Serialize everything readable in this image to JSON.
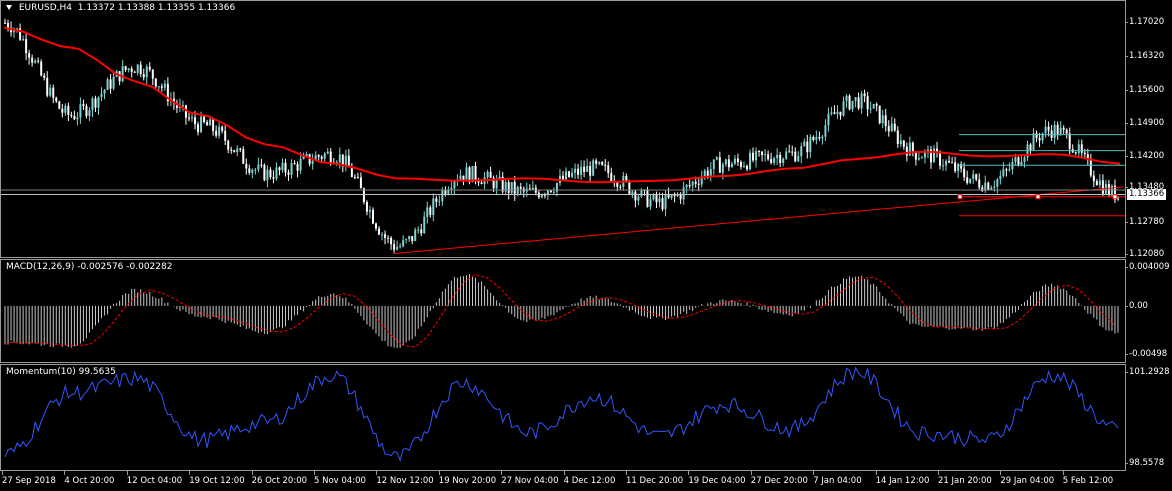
{
  "main": {
    "symbol": "EURUSD,H4",
    "ohlc": "1.13372 1.13388 1.13355 1.13366",
    "current_price": "1.13366",
    "price_ticks": [
      "1.17020",
      "1.16320",
      "1.15600",
      "1.14900",
      "1.14200",
      "1.13480",
      "1.12780",
      "1.12080"
    ]
  },
  "macd": {
    "label": "MACD(12,26,9) -0.002576 -0.002282",
    "ticks": [
      "0.004009",
      "0.00",
      "-0.00498"
    ]
  },
  "momentum": {
    "label": "Momentum(10) 99.5635",
    "ticks": [
      "101.2928",
      "98.5578"
    ]
  },
  "time_axis": [
    "27 Sep 2018",
    "4 Oct 20:00",
    "12 Oct 04:00",
    "19 Oct 12:00",
    "26 Oct 20:00",
    "5 Nov 04:00",
    "12 Nov 12:00",
    "19 Nov 20:00",
    "27 Nov 04:00",
    "4 Dec 12:00",
    "11 Dec 20:00",
    "19 Dec 04:00",
    "27 Dec 20:00",
    "7 Jan 04:00",
    "14 Jan 12:00",
    "21 Jan 20:00",
    "29 Jan 04:00",
    "5 Feb 12:00"
  ],
  "colors": {
    "background": "#000000",
    "bull_candle": "#7fd3d3",
    "bear_candle": "#ffffff",
    "moving_average": "#ff0000",
    "trendline": "#ff0000",
    "horizontal_levels": "#4fc0c0",
    "macd_histogram": "#c8c8c8",
    "macd_signal": "#ff0000",
    "momentum_line": "#3355ff"
  },
  "chart_data": [
    {
      "type": "line",
      "title": "EURUSD,H4",
      "series_type": "candlestick",
      "ylim": [
        1.1208,
        1.1735
      ],
      "x": [
        "27 Sep 2018",
        "4 Oct 20:00",
        "12 Oct 04:00",
        "19 Oct 12:00",
        "26 Oct 20:00",
        "5 Nov 04:00",
        "12 Nov 12:00",
        "19 Nov 20:00",
        "27 Nov 04:00",
        "4 Dec 12:00",
        "11 Dec 20:00",
        "19 Dec 04:00",
        "27 Dec 20:00",
        "7 Jan 04:00",
        "14 Jan 12:00",
        "21 Jan 20:00",
        "29 Jan 04:00",
        "5 Feb 12:00"
      ],
      "close": [
        1.169,
        1.15,
        1.16,
        1.148,
        1.138,
        1.142,
        1.123,
        1.138,
        1.134,
        1.139,
        1.132,
        1.14,
        1.142,
        1.153,
        1.142,
        1.136,
        1.147,
        1.1337
      ],
      "ma": [
        1.168,
        1.164,
        1.157,
        1.15,
        1.144,
        1.14,
        1.137,
        1.1365,
        1.137,
        1.1362,
        1.1365,
        1.1375,
        1.139,
        1.141,
        1.1425,
        1.1415,
        1.142,
        1.14
      ]
    },
    {
      "type": "bar",
      "title": "MACD(12,26,9)",
      "ylim": [
        -0.00498,
        0.004009
      ],
      "x": [
        "27 Sep 2018",
        "4 Oct 20:00",
        "12 Oct 04:00",
        "19 Oct 12:00",
        "26 Oct 20:00",
        "5 Nov 04:00",
        "12 Nov 12:00",
        "19 Nov 20:00",
        "27 Nov 04:00",
        "4 Dec 12:00",
        "11 Dec 20:00",
        "19 Dec 04:00",
        "27 Dec 20:00",
        "7 Jan 04:00",
        "14 Jan 12:00",
        "21 Jan 20:00",
        "29 Jan 04:00",
        "5 Feb 12:00"
      ],
      "values": [
        -0.0035,
        -0.0038,
        0.0015,
        -0.001,
        -0.0025,
        0.0012,
        -0.004,
        0.003,
        -0.0015,
        0.0008,
        -0.0012,
        0.0005,
        -0.0008,
        0.0028,
        -0.002,
        -0.0022,
        0.002,
        -0.0026
      ]
    },
    {
      "type": "line",
      "title": "Momentum(10)",
      "ylim": [
        98.5578,
        101.2928
      ],
      "x": [
        "27 Sep 2018",
        "4 Oct 20:00",
        "12 Oct 04:00",
        "19 Oct 12:00",
        "26 Oct 20:00",
        "5 Nov 04:00",
        "12 Nov 12:00",
        "19 Nov 20:00",
        "27 Nov 04:00",
        "4 Dec 12:00",
        "11 Dec 20:00",
        "19 Dec 04:00",
        "27 Dec 20:00",
        "7 Jan 04:00",
        "14 Jan 12:00",
        "21 Jan 20:00",
        "29 Jan 04:00",
        "5 Feb 12:00"
      ],
      "values": [
        98.9,
        100.6,
        101.0,
        99.3,
        99.8,
        101.1,
        98.8,
        100.9,
        99.5,
        100.5,
        99.4,
        100.3,
        99.6,
        101.2,
        99.5,
        99.3,
        101.1,
        99.56
      ]
    }
  ]
}
